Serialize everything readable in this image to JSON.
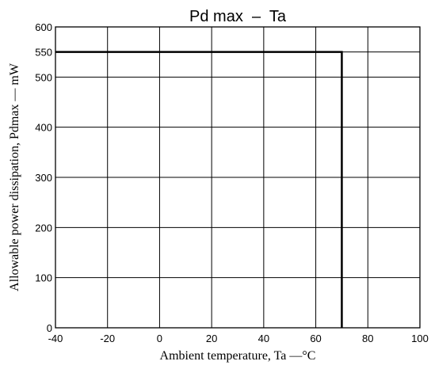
{
  "chart_data": {
    "type": "line",
    "title": "Pd max  –  Ta",
    "xlabel": "Ambient temperature, Ta —°C",
    "ylabel": "Allowable power dissipation, Pdmax — mW",
    "xlim": [
      -40,
      100
    ],
    "ylim": [
      0,
      600
    ],
    "xticks": [
      "-40",
      "-20",
      "0",
      "20",
      "40",
      "60",
      "80",
      "100"
    ],
    "yticks": [
      "0",
      "100",
      "200",
      "300",
      "400",
      "500",
      "550",
      "600"
    ],
    "grid": true,
    "series": [
      {
        "x": [
          -40,
          70,
          70
        ],
        "y": [
          550,
          550,
          0
        ]
      }
    ]
  }
}
